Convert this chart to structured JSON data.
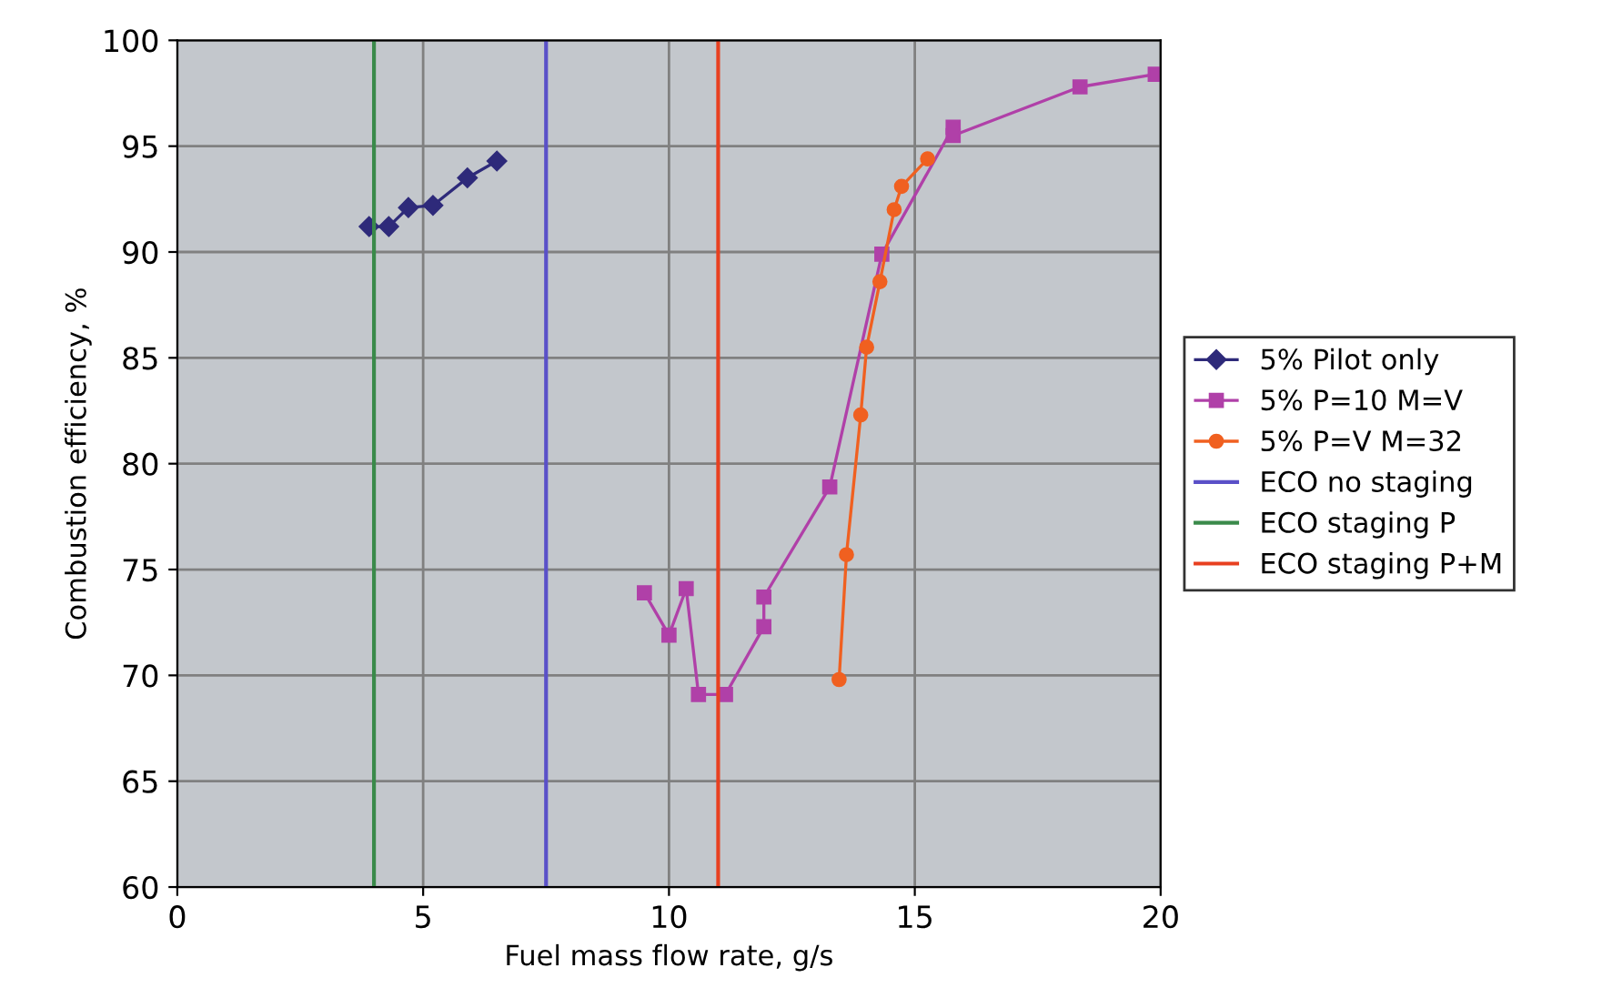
{
  "chart_data": {
    "type": "line",
    "xlabel": "Fuel mass flow rate, g/s",
    "ylabel": "Combustion efficiency, %",
    "xlim": [
      0,
      20
    ],
    "xticks": [
      0,
      5,
      10,
      15,
      20
    ],
    "ylim": [
      60,
      100
    ],
    "yticks": [
      60,
      65,
      70,
      75,
      80,
      85,
      90,
      95,
      100
    ],
    "grid": true,
    "legend": "right",
    "series": [
      {
        "name": "5% Pilot only",
        "color": "#2e2a7a",
        "marker": "diamond",
        "x": [
          3.9,
          4.3,
          4.7,
          5.2,
          5.9,
          6.5
        ],
        "values": [
          91.2,
          91.2,
          92.1,
          92.2,
          93.5,
          94.3
        ]
      },
      {
        "name": "5% P=10 M=V",
        "color": "#b040a8",
        "marker": "square",
        "x": [
          9.5,
          10.0,
          10.35,
          10.6,
          11.15,
          11.93,
          11.93,
          13.27,
          14.33,
          15.78,
          15.78,
          18.36,
          19.89
        ],
        "values": [
          73.9,
          71.9,
          74.1,
          69.1,
          69.1,
          72.3,
          73.7,
          78.9,
          89.9,
          95.9,
          95.5,
          97.8,
          98.4
        ]
      },
      {
        "name": "5% P=V M=32",
        "color": "#f06020",
        "marker": "circle",
        "x": [
          13.46,
          13.61,
          13.9,
          14.02,
          14.29,
          14.58,
          14.73,
          15.26
        ],
        "values": [
          69.8,
          75.7,
          82.3,
          85.5,
          88.6,
          92.0,
          93.1,
          94.4
        ]
      },
      {
        "name": "ECO no staging",
        "color": "#5a50c8",
        "marker": "none",
        "x": [
          7.5,
          7.5
        ],
        "values": [
          60,
          100
        ]
      },
      {
        "name": "ECO staging P",
        "color": "#3a8a4a",
        "marker": "none",
        "x": [
          4.0,
          4.0
        ],
        "values": [
          60,
          100
        ]
      },
      {
        "name": "ECO staging P+M",
        "color": "#e84020",
        "marker": "none",
        "x": [
          11.0,
          11.0
        ],
        "values": [
          60,
          100
        ]
      }
    ]
  }
}
